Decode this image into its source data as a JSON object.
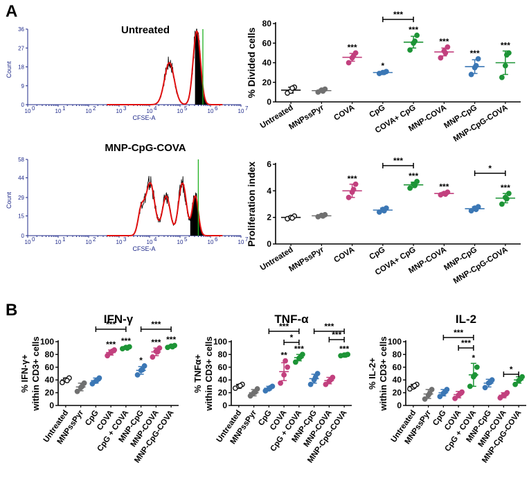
{
  "panel_labels": {
    "a": "A",
    "b": "B"
  },
  "colors": {
    "untreated": "#111111",
    "mnpsspyr": "#707070",
    "cova": "#c2407e",
    "cpg": "#3b77b5",
    "cova_cpg": "#1d9436",
    "mnp_cova": "#c2407e",
    "mnp_cpg": "#3b77b5",
    "mnp_cpg_cova": "#1d9436",
    "flow_axis": "#1f2a8a",
    "flow_fit": "#e01010",
    "flow_gate": "#20b020"
  },
  "chart_data": [
    {
      "id": "flow-untreated",
      "type": "area",
      "title": "Untreated",
      "xlabel": "CFSE-A",
      "ylabel": "Count",
      "x_scale": "log",
      "x_ticks": [
        "10",
        "10",
        "10",
        "10",
        "10",
        "10",
        "10",
        "10"
      ],
      "x_tick_exponents": [
        "1",
        "2",
        "3",
        "4",
        "5",
        "6",
        "7"
      ],
      "x_tick_first": "0",
      "xlim": [
        1,
        10000000
      ],
      "y_ticks": [
        "0",
        "9",
        "18",
        "27",
        "36"
      ],
      "ylim": [
        0,
        36
      ],
      "peaks": [
        {
          "log_center": 4.65,
          "width": 0.16,
          "height": 20
        },
        {
          "log_center": 5.55,
          "width": 0.12,
          "height": 35
        }
      ],
      "undivided_peak_log": 5.7
    },
    {
      "id": "flow-mnp-cpg-cova",
      "type": "area",
      "title": "MNP-CpG-COVA",
      "xlabel": "CFSE-A",
      "ylabel": "Count",
      "x_scale": "log",
      "x_ticks": [
        "10",
        "10",
        "10",
        "10",
        "10",
        "10",
        "10",
        "10"
      ],
      "x_tick_exponents": [
        "1",
        "2",
        "3",
        "4",
        "5",
        "6",
        "7"
      ],
      "x_tick_first": "0",
      "xlim": [
        1,
        10000000
      ],
      "y_ticks": [
        "0",
        "15",
        "29",
        "44",
        "58"
      ],
      "ylim": [
        0,
        58
      ],
      "peaks": [
        {
          "log_center": 3.72,
          "width": 0.1,
          "height": 18
        },
        {
          "log_center": 4.02,
          "width": 0.15,
          "height": 40
        },
        {
          "log_center": 4.55,
          "width": 0.13,
          "height": 30
        },
        {
          "log_center": 5.08,
          "width": 0.13,
          "height": 40
        },
        {
          "log_center": 5.5,
          "width": 0.1,
          "height": 30
        }
      ],
      "undivided_peak_log": 5.55
    },
    {
      "id": "divided-cells",
      "type": "scatter",
      "title": "",
      "xlabel": "",
      "ylabel": "% Divided cells",
      "ylim": [
        0,
        80
      ],
      "y_ticks": [
        0,
        20,
        40,
        60,
        80
      ],
      "categories": [
        "Untreated",
        "MNPssPyr",
        "COVA",
        "CpG",
        "COVA+ CpG",
        "MNP-COVA",
        "MNP-CpG",
        "MNP-CpG-COVA"
      ],
      "color_keys": [
        "untreated",
        "mnpsspyr",
        "cova",
        "cpg",
        "cova_cpg",
        "mnp_cova",
        "mnp_cpg",
        "mnp_cpg_cova"
      ],
      "series": [
        {
          "name": "Untreated",
          "values": [
            9,
            11,
            15,
            14
          ],
          "mean": 12,
          "sd": 3
        },
        {
          "name": "MNPssPyr",
          "values": [
            10,
            12,
            13,
            11
          ],
          "mean": 11.5,
          "sd": 1.5
        },
        {
          "name": "COVA",
          "values": [
            40,
            45,
            50,
            47
          ],
          "mean": 45.5,
          "sd": 4
        },
        {
          "name": "CpG",
          "values": [
            29,
            30,
            31,
            30
          ],
          "mean": 30,
          "sd": 1
        },
        {
          "name": "COVA+ CpG",
          "values": [
            53,
            60,
            68,
            62
          ],
          "mean": 61,
          "sd": 6
        },
        {
          "name": "MNP-COVA",
          "values": [
            45,
            52,
            56,
            50
          ],
          "mean": 51,
          "sd": 4
        },
        {
          "name": "MNP-CpG",
          "values": [
            28,
            35,
            44,
            37
          ],
          "mean": 36,
          "sd": 7
        },
        {
          "name": "MNP-CpG-COVA",
          "values": [
            25,
            37,
            50,
            48
          ],
          "mean": 40,
          "sd": 12
        }
      ],
      "significance": [
        {
          "type": "star",
          "index": 2,
          "text": "***"
        },
        {
          "type": "star",
          "index": 3,
          "text": "*"
        },
        {
          "type": "star",
          "index": 4,
          "text": "***"
        },
        {
          "type": "star",
          "index": 5,
          "text": "***"
        },
        {
          "type": "star",
          "index": 6,
          "text": "***"
        },
        {
          "type": "star",
          "index": 7,
          "text": "***"
        },
        {
          "type": "bracket",
          "from": 3,
          "to": 4,
          "text": "***"
        }
      ]
    },
    {
      "id": "proliferation-index",
      "type": "scatter",
      "title": "",
      "xlabel": "",
      "ylabel": "Proliferation index",
      "ylim": [
        0,
        6
      ],
      "y_ticks": [
        0,
        2,
        4,
        6
      ],
      "categories": [
        "Untreated",
        "MNPssPyr",
        "COVA",
        "CpG",
        "COVA+ CpG",
        "MNP-COVA",
        "MNP-CpG",
        "MNP-CpG-COVA"
      ],
      "color_keys": [
        "untreated",
        "mnpsspyr",
        "cova",
        "cpg",
        "cova_cpg",
        "mnp_cova",
        "mnp_cpg",
        "mnp_cpg_cova"
      ],
      "series": [
        {
          "name": "Untreated",
          "values": [
            1.9,
            2.0,
            2.1,
            1.95
          ],
          "mean": 2.0,
          "sd": 0.08
        },
        {
          "name": "MNPssPyr",
          "values": [
            2.05,
            2.15,
            2.2,
            2.1
          ],
          "mean": 2.12,
          "sd": 0.08
        },
        {
          "name": "COVA",
          "values": [
            3.5,
            3.9,
            4.5,
            4.1
          ],
          "mean": 4.0,
          "sd": 0.5
        },
        {
          "name": "CpG",
          "values": [
            2.4,
            2.6,
            2.7,
            2.5
          ],
          "mean": 2.55,
          "sd": 0.15
        },
        {
          "name": "COVA+ CpG",
          "values": [
            4.2,
            4.5,
            4.7,
            4.4
          ],
          "mean": 4.45,
          "sd": 0.2
        },
        {
          "name": "MNP-COVA",
          "values": [
            3.7,
            3.8,
            3.9,
            3.75
          ],
          "mean": 3.8,
          "sd": 0.1
        },
        {
          "name": "MNP-CpG",
          "values": [
            2.5,
            2.7,
            2.8,
            2.6
          ],
          "mean": 2.65,
          "sd": 0.15
        },
        {
          "name": "MNP-CpG-COVA",
          "values": [
            3.0,
            3.5,
            3.8,
            3.4
          ],
          "mean": 3.45,
          "sd": 0.35
        }
      ],
      "significance": [
        {
          "type": "star",
          "index": 2,
          "text": "***"
        },
        {
          "type": "star",
          "index": 4,
          "text": "***"
        },
        {
          "type": "star",
          "index": 5,
          "text": "***"
        },
        {
          "type": "star",
          "index": 7,
          "text": "***"
        },
        {
          "type": "bracket",
          "from": 3,
          "to": 4,
          "text": "***"
        },
        {
          "type": "bracket",
          "from": 6,
          "to": 7,
          "text": "*"
        }
      ]
    },
    {
      "id": "ifn-gamma",
      "type": "scatter",
      "title": "IFN-γ",
      "xlabel": "",
      "ylabel_lines": [
        "% IFN-γ+",
        "within CD3+ cells"
      ],
      "ylim": [
        0,
        100
      ],
      "y_ticks": [
        0,
        20,
        40,
        60,
        80,
        100
      ],
      "categories": [
        "Untreated",
        "MNPssPyr",
        "CpG",
        "COVA",
        "CpG + COVA",
        "MNP-CpG",
        "MNP-COVA",
        "MNP-CpG-COVA"
      ],
      "color_keys": [
        "untreated",
        "mnpsspyr",
        "cpg",
        "cova",
        "cova_cpg",
        "mnp_cpg",
        "mnp_cova",
        "mnp_cpg_cova"
      ],
      "series": [
        {
          "name": "Untreated",
          "values": [
            36,
            40,
            43,
            39
          ],
          "mean": 40,
          "sd": 3
        },
        {
          "name": "MNPssPyr",
          "values": [
            22,
            28,
            35,
            30
          ],
          "mean": 29,
          "sd": 6
        },
        {
          "name": "CpG",
          "values": [
            34,
            38,
            43,
            40
          ],
          "mean": 39,
          "sd": 4
        },
        {
          "name": "COVA",
          "values": [
            78,
            83,
            87,
            85
          ],
          "mean": 83,
          "sd": 4
        },
        {
          "name": "CpG + COVA",
          "values": [
            89,
            91,
            92,
            90
          ],
          "mean": 91,
          "sd": 1.5
        },
        {
          "name": "MNP-CpG",
          "values": [
            48,
            55,
            62,
            56
          ],
          "mean": 55,
          "sd": 6
        },
        {
          "name": "MNP-COVA",
          "values": [
            76,
            85,
            90,
            84
          ],
          "mean": 84,
          "sd": 6
        },
        {
          "name": "MNP-CpG-COVA",
          "values": [
            91,
            93,
            94,
            92
          ],
          "mean": 93,
          "sd": 1.5
        }
      ],
      "significance": [
        {
          "type": "star",
          "index": 3,
          "text": "***"
        },
        {
          "type": "star",
          "index": 4,
          "text": "***"
        },
        {
          "type": "star",
          "index": 5,
          "text": "*"
        },
        {
          "type": "star",
          "index": 6,
          "text": "***"
        },
        {
          "type": "star",
          "index": 7,
          "text": "***"
        },
        {
          "type": "bracket",
          "from": 2,
          "to": 4,
          "text": "***"
        },
        {
          "type": "bracket",
          "from": 5,
          "to": 7,
          "text": "***"
        }
      ]
    },
    {
      "id": "tnf-alpha",
      "type": "scatter",
      "title": "TNF-α",
      "xlabel": "",
      "ylabel_lines": [
        "% TNFα+",
        "within CD3+ cells"
      ],
      "ylim": [
        0,
        100
      ],
      "y_ticks": [
        0,
        20,
        40,
        60,
        80,
        100
      ],
      "categories": [
        "Untreated",
        "MNPssPyr",
        "CpG",
        "COVA",
        "CpG + COVA",
        "MNP-CpG",
        "MNP-COVA",
        "MNP-CpG-COVA"
      ],
      "color_keys": [
        "untreated",
        "mnpsspyr",
        "cpg",
        "cova",
        "cova_cpg",
        "mnp_cpg",
        "mnp_cova",
        "mnp_cpg_cova"
      ],
      "series": [
        {
          "name": "Untreated",
          "values": [
            27,
            30,
            33,
            31
          ],
          "mean": 30,
          "sd": 3
        },
        {
          "name": "MNPssPyr",
          "values": [
            15,
            20,
            26,
            21
          ],
          "mean": 20,
          "sd": 5
        },
        {
          "name": "CpG",
          "values": [
            23,
            26,
            30,
            28
          ],
          "mean": 27,
          "sd": 3
        },
        {
          "name": "COVA",
          "values": [
            35,
            48,
            60,
            70
          ],
          "mean": 53,
          "sd": 14
        },
        {
          "name": "CpG + COVA",
          "values": [
            68,
            74,
            80,
            76
          ],
          "mean": 75,
          "sd": 5
        },
        {
          "name": "MNP-CpG",
          "values": [
            33,
            40,
            50,
            44
          ],
          "mean": 42,
          "sd": 7
        },
        {
          "name": "MNP-COVA",
          "values": [
            33,
            38,
            44,
            40
          ],
          "mean": 39,
          "sd": 5
        },
        {
          "name": "MNP-CpG-COVA",
          "values": [
            78,
            79,
            80,
            79
          ],
          "mean": 79,
          "sd": 1
        }
      ],
      "significance": [
        {
          "type": "star",
          "index": 3,
          "text": "**"
        },
        {
          "type": "star",
          "index": 4,
          "text": "***"
        },
        {
          "type": "star",
          "index": 7,
          "text": "***"
        },
        {
          "type": "bracket",
          "from": 2,
          "to": 4,
          "text": "***"
        },
        {
          "type": "bracket",
          "from": 3,
          "to": 4,
          "text": "*"
        },
        {
          "type": "bracket",
          "from": 5,
          "to": 7,
          "text": "***"
        },
        {
          "type": "bracket",
          "from": 6,
          "to": 7,
          "text": "***"
        }
      ]
    },
    {
      "id": "il-2",
      "type": "scatter",
      "title": "IL-2",
      "xlabel": "",
      "ylabel_lines": [
        "% IL-2+",
        "within CD3+ cells"
      ],
      "ylim": [
        0,
        100
      ],
      "y_ticks": [
        0,
        20,
        40,
        60,
        80,
        100
      ],
      "categories": [
        "Untreated",
        "MNPssPyr",
        "CpG",
        "COVA",
        "CpG + COVA",
        "MNP-CpG",
        "MNP-COVA",
        "MNP-CpG-COVA"
      ],
      "color_keys": [
        "untreated",
        "mnpsspyr",
        "cpg",
        "cova",
        "cova_cpg",
        "mnp_cpg",
        "mnp_cova",
        "mnp_cpg_cova"
      ],
      "series": [
        {
          "name": "Untreated",
          "values": [
            26,
            29,
            33,
            31
          ],
          "mean": 30,
          "sd": 3
        },
        {
          "name": "MNPssPyr",
          "values": [
            10,
            16,
            25,
            19
          ],
          "mean": 18,
          "sd": 7
        },
        {
          "name": "CpG",
          "values": [
            14,
            19,
            25,
            21
          ],
          "mean": 20,
          "sd": 5
        },
        {
          "name": "COVA",
          "values": [
            11,
            16,
            21,
            18
          ],
          "mean": 17,
          "sd": 5
        },
        {
          "name": "CpG + COVA",
          "values": [
            30,
            45,
            60,
            48
          ],
          "mean": 48,
          "sd": 18
        },
        {
          "name": "MNP-CpG",
          "values": [
            28,
            35,
            40,
            36
          ],
          "mean": 35,
          "sd": 6
        },
        {
          "name": "MNP-COVA",
          "values": [
            12,
            16,
            20,
            17
          ],
          "mean": 16,
          "sd": 4
        },
        {
          "name": "MNP-CpG-COVA",
          "values": [
            33,
            39,
            45,
            41
          ],
          "mean": 40,
          "sd": 5
        }
      ],
      "significance": [
        {
          "type": "star",
          "index": 4,
          "text": "*"
        },
        {
          "type": "bracket",
          "from": 3,
          "to": 4,
          "text": "***"
        },
        {
          "type": "bracket",
          "from": 2,
          "to": 4,
          "text": "***"
        },
        {
          "type": "bracket",
          "from": 6,
          "to": 7,
          "text": "*"
        }
      ]
    }
  ]
}
